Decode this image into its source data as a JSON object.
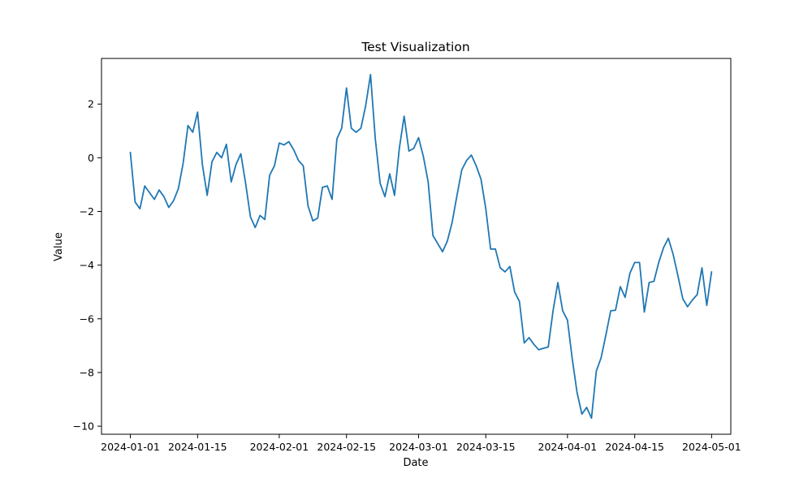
{
  "chart_data": {
    "type": "line",
    "title": "Test Visualization",
    "xlabel": "Date",
    "ylabel": "Value",
    "grid": false,
    "xlim": [
      "2023-12-26",
      "2024-05-05"
    ],
    "ylim": [
      -10.3,
      3.7
    ],
    "x_ticks": [
      "2024-01-01",
      "2024-01-15",
      "2024-02-01",
      "2024-02-15",
      "2024-03-01",
      "2024-03-15",
      "2024-04-01",
      "2024-04-15",
      "2024-05-01"
    ],
    "y_ticks": [
      2,
      0,
      -2,
      -4,
      -6,
      -8,
      -10
    ],
    "y_tick_labels": [
      "2",
      "0",
      "−2",
      "−4",
      "−6",
      "−8",
      "−10"
    ],
    "series": [
      {
        "color": "#1f77b4",
        "x": [
          "2024-01-01",
          "2024-01-02",
          "2024-01-03",
          "2024-01-04",
          "2024-01-05",
          "2024-01-06",
          "2024-01-07",
          "2024-01-08",
          "2024-01-09",
          "2024-01-10",
          "2024-01-11",
          "2024-01-12",
          "2024-01-13",
          "2024-01-14",
          "2024-01-15",
          "2024-01-16",
          "2024-01-17",
          "2024-01-18",
          "2024-01-19",
          "2024-01-20",
          "2024-01-21",
          "2024-01-22",
          "2024-01-23",
          "2024-01-24",
          "2024-01-25",
          "2024-01-26",
          "2024-01-27",
          "2024-01-28",
          "2024-01-29",
          "2024-01-30",
          "2024-01-31",
          "2024-02-01",
          "2024-02-02",
          "2024-02-03",
          "2024-02-04",
          "2024-02-05",
          "2024-02-06",
          "2024-02-07",
          "2024-02-08",
          "2024-02-09",
          "2024-02-10",
          "2024-02-11",
          "2024-02-12",
          "2024-02-13",
          "2024-02-14",
          "2024-02-15",
          "2024-02-16",
          "2024-02-17",
          "2024-02-18",
          "2024-02-19",
          "2024-02-20",
          "2024-02-21",
          "2024-02-22",
          "2024-02-23",
          "2024-02-24",
          "2024-02-25",
          "2024-02-26",
          "2024-02-27",
          "2024-02-28",
          "2024-02-29",
          "2024-03-01",
          "2024-03-02",
          "2024-03-03",
          "2024-03-04",
          "2024-03-05",
          "2024-03-06",
          "2024-03-07",
          "2024-03-08",
          "2024-03-09",
          "2024-03-10",
          "2024-03-11",
          "2024-03-12",
          "2024-03-13",
          "2024-03-14",
          "2024-03-15",
          "2024-03-16",
          "2024-03-17",
          "2024-03-18",
          "2024-03-19",
          "2024-03-20",
          "2024-03-21",
          "2024-03-22",
          "2024-03-23",
          "2024-03-24",
          "2024-03-25",
          "2024-03-26",
          "2024-03-27",
          "2024-03-28",
          "2024-03-29",
          "2024-03-30",
          "2024-03-31",
          "2024-04-01",
          "2024-04-02",
          "2024-04-03",
          "2024-04-04",
          "2024-04-05",
          "2024-04-06",
          "2024-04-07",
          "2024-04-08",
          "2024-04-09",
          "2024-04-10",
          "2024-04-11",
          "2024-04-12",
          "2024-04-13",
          "2024-04-14",
          "2024-04-15",
          "2024-04-16",
          "2024-04-17",
          "2024-04-18",
          "2024-04-19",
          "2024-04-20",
          "2024-04-21",
          "2024-04-22",
          "2024-04-23",
          "2024-04-24",
          "2024-04-25",
          "2024-04-26",
          "2024-04-27",
          "2024-04-28",
          "2024-04-29",
          "2024-04-30",
          "2024-05-01"
        ],
        "y": [
          0.2,
          -1.65,
          -1.9,
          -1.05,
          -1.3,
          -1.55,
          -1.2,
          -1.45,
          -1.85,
          -1.6,
          -1.15,
          -0.2,
          1.2,
          0.95,
          1.7,
          -0.25,
          -1.4,
          -0.15,
          0.2,
          0.0,
          0.5,
          -0.9,
          -0.25,
          0.15,
          -0.95,
          -2.2,
          -2.6,
          -2.15,
          -2.3,
          -0.65,
          -0.3,
          0.55,
          0.48,
          0.6,
          0.3,
          -0.1,
          -0.3,
          -1.8,
          -2.35,
          -2.25,
          -1.1,
          -1.05,
          -1.55,
          0.7,
          1.1,
          2.6,
          1.1,
          0.95,
          1.1,
          1.95,
          3.1,
          0.7,
          -0.95,
          -1.45,
          -0.6,
          -1.4,
          0.35,
          1.55,
          0.25,
          0.35,
          0.75,
          0.05,
          -0.9,
          -2.9,
          -3.2,
          -3.5,
          -3.1,
          -2.4,
          -1.4,
          -0.45,
          -0.1,
          0.1,
          -0.3,
          -0.8,
          -1.9,
          -3.4,
          -3.4,
          -4.1,
          -4.25,
          -4.05,
          -5.0,
          -5.35,
          -6.9,
          -6.7,
          -6.95,
          -7.15,
          -7.1,
          -7.05,
          -5.7,
          -4.65,
          -5.7,
          -6.05,
          -7.5,
          -8.75,
          -9.55,
          -9.3,
          -9.7,
          -7.95,
          -7.45,
          -6.6,
          -5.7,
          -5.68,
          -4.8,
          -5.2,
          -4.3,
          -3.9,
          -3.9,
          -5.75,
          -4.65,
          -4.6,
          -3.9,
          -3.35,
          -3.0,
          -3.6,
          -4.4,
          -5.25,
          -5.55,
          -5.3,
          -5.1,
          -4.1,
          -5.5,
          -4.25
        ]
      }
    ]
  }
}
